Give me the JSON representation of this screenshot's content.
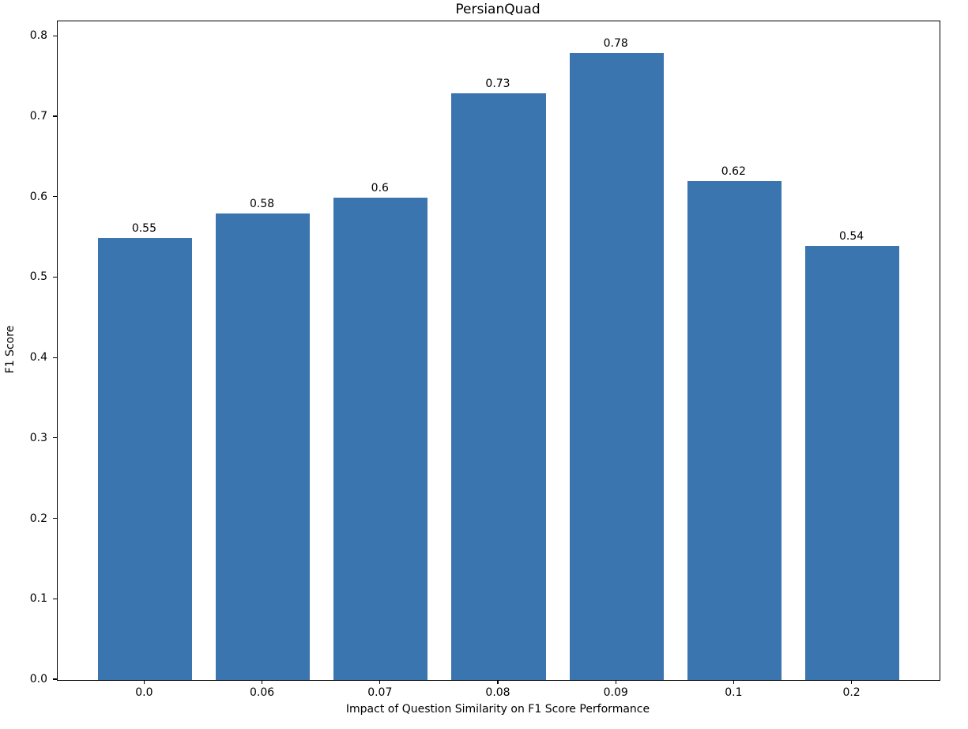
{
  "chart_data": {
    "type": "bar",
    "title": "PersianQuad",
    "xlabel": "Impact of Question Similarity on F1 Score Performance",
    "ylabel": "F1 Score",
    "categories": [
      "0.0",
      "0.06",
      "0.07",
      "0.08",
      "0.09",
      "0.1",
      "0.2"
    ],
    "values": [
      0.55,
      0.58,
      0.6,
      0.73,
      0.78,
      0.62,
      0.54
    ],
    "value_labels": [
      "0.55",
      "0.58",
      "0.6",
      "0.73",
      "0.78",
      "0.62",
      "0.54"
    ],
    "yticks": [
      0.0,
      0.1,
      0.2,
      0.3,
      0.4,
      0.5,
      0.6,
      0.7,
      0.8
    ],
    "ytick_labels": [
      "0.0",
      "0.1",
      "0.2",
      "0.3",
      "0.4",
      "0.5",
      "0.6",
      "0.7",
      "0.8"
    ],
    "ylim": [
      0,
      0.819
    ],
    "bar_width_fraction": 0.8,
    "bar_color": "#3b75af",
    "axis_color": "#000000",
    "text_color": "#000000",
    "background_color": "#ffffff",
    "grid": false,
    "legend": null
  }
}
